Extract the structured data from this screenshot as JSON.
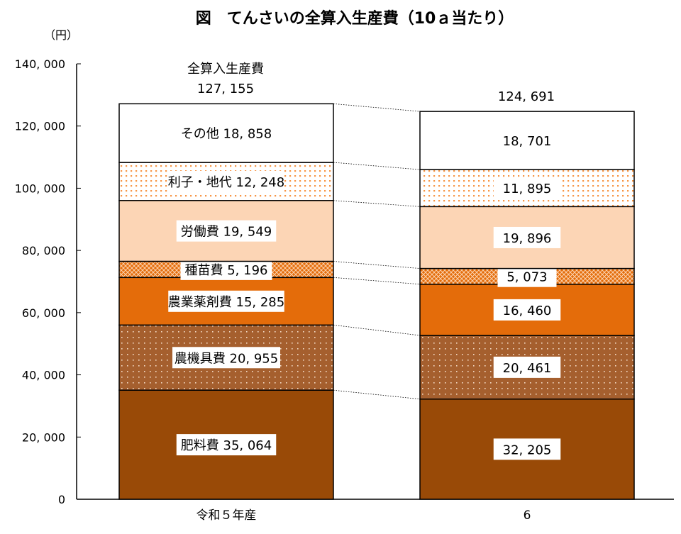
{
  "chart_data": {
    "type": "bar",
    "stacked": true,
    "title": "図　てんさいの全算入生産費（10ａ当たり）",
    "ylabel": "（円）",
    "ylim": [
      0,
      140000
    ],
    "yticks": [
      0,
      20000,
      40000,
      60000,
      80000,
      100000,
      120000,
      140000
    ],
    "ytick_labels": [
      "0",
      "20, 000",
      "40, 000",
      "60, 000",
      "80, 000",
      "100, 000",
      "120, 000",
      "140, 000"
    ],
    "categories": [
      "令和５年産",
      "6"
    ],
    "total_label": "全算入生産費",
    "totals": [
      127155,
      124691
    ],
    "total_texts": [
      "127, 155",
      "124, 691"
    ],
    "series": [
      {
        "name": "肥料費",
        "values": [
          35064,
          32205
        ],
        "texts": [
          "肥料費 35, 064",
          "32, 205"
        ],
        "color": "#994a07",
        "pattern": "solid"
      },
      {
        "name": "農機具費",
        "values": [
          20955,
          20461
        ],
        "texts": [
          "農機具費 20, 955",
          "20, 461"
        ],
        "color": "#a55f2e",
        "pattern": "white-dots"
      },
      {
        "name": "農業薬剤費",
        "values": [
          15285,
          16460
        ],
        "texts": [
          "農業薬剤費 15, 285",
          "16, 460"
        ],
        "color": "#e46c0a",
        "pattern": "solid"
      },
      {
        "name": "種苗費",
        "values": [
          5196,
          5073
        ],
        "texts": [
          "種苗費 5, 196",
          "5, 073"
        ],
        "color": "#e46c0a",
        "pattern": "crosshatch"
      },
      {
        "name": "労働費",
        "values": [
          19549,
          19896
        ],
        "texts": [
          "労働費 19, 549",
          "19, 896"
        ],
        "color": "#fcd5b5",
        "pattern": "solid"
      },
      {
        "name": "利子・地代",
        "values": [
          12248,
          11895
        ],
        "texts": [
          "利子・地代 12, 248",
          "11, 895"
        ],
        "color": "#f79646",
        "pattern": "orange-dots"
      },
      {
        "name": "その他",
        "values": [
          18858,
          18701
        ],
        "texts": [
          "その他 18, 858",
          "18, 701"
        ],
        "color": "#ffffff",
        "pattern": "solid"
      }
    ],
    "grid": false,
    "legend": "none"
  }
}
